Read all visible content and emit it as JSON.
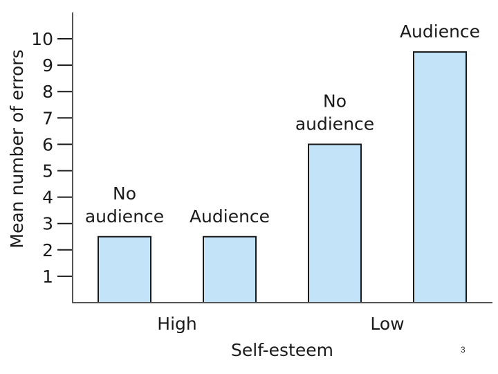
{
  "chart_data": {
    "type": "bar",
    "title": "",
    "xlabel": "Self-esteem",
    "ylabel": "Mean number of errors",
    "ylim": [
      0,
      10
    ],
    "yticks": [
      "1",
      "2",
      "3",
      "4",
      "5",
      "6",
      "7",
      "8",
      "9",
      "10"
    ],
    "groups": [
      {
        "label": "High",
        "bars": [
          {
            "label_lines": [
              "No",
              "audience"
            ],
            "value": 2.5
          },
          {
            "label_lines": [
              "Audience"
            ],
            "value": 2.5
          }
        ]
      },
      {
        "label": "Low",
        "bars": [
          {
            "label_lines": [
              "No",
              "audience"
            ],
            "value": 6.0
          },
          {
            "label_lines": [
              "Audience"
            ],
            "value": 9.5
          }
        ]
      }
    ],
    "grid": false,
    "colors": {
      "bar_fill": "#c3e4f8",
      "bar_stroke": "#1a1a1a",
      "axis": "#555555"
    }
  },
  "page_number": "3"
}
